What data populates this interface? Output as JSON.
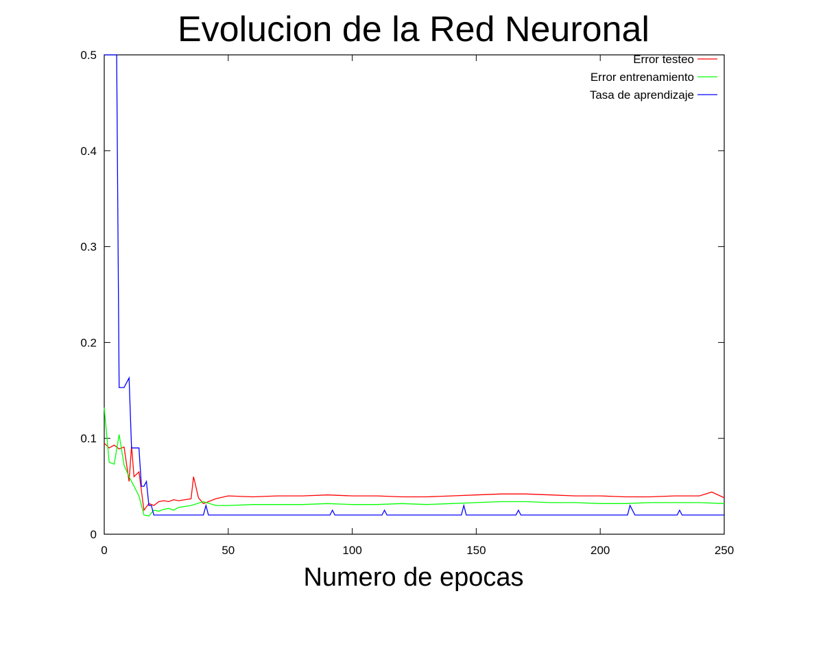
{
  "chart_data": {
    "type": "line",
    "title": "Evolucion de la Red Neuronal",
    "xlabel": "Numero de epocas",
    "ylabel": "",
    "xlim": [
      0,
      250
    ],
    "ylim": [
      0,
      0.5
    ],
    "x_ticks": [
      0,
      50,
      100,
      150,
      200,
      250
    ],
    "y_ticks": [
      0,
      0.1,
      0.2,
      0.3,
      0.4,
      0.5
    ],
    "x_tick_labels": [
      "0",
      "50",
      "100",
      "150",
      "200",
      "250"
    ],
    "y_tick_labels": [
      "0",
      "0.1",
      "0.2",
      "0.3",
      "0.4",
      "0.5"
    ],
    "grid": false,
    "legend_position": "top-right",
    "series": [
      {
        "name": "Error testeo",
        "color": "#ff0000",
        "x": [
          0,
          2,
          4,
          6,
          8,
          10,
          11,
          12,
          14,
          16,
          18,
          20,
          22,
          24,
          26,
          28,
          30,
          35,
          36,
          38,
          40,
          45,
          50,
          60,
          70,
          80,
          90,
          100,
          110,
          120,
          130,
          140,
          150,
          160,
          170,
          180,
          190,
          200,
          210,
          220,
          230,
          240,
          245,
          250
        ],
        "y": [
          0.095,
          0.09,
          0.093,
          0.089,
          0.091,
          0.055,
          0.092,
          0.06,
          0.065,
          0.025,
          0.032,
          0.03,
          0.034,
          0.035,
          0.034,
          0.036,
          0.035,
          0.037,
          0.06,
          0.038,
          0.032,
          0.037,
          0.04,
          0.039,
          0.04,
          0.04,
          0.041,
          0.04,
          0.04,
          0.039,
          0.039,
          0.04,
          0.041,
          0.042,
          0.042,
          0.041,
          0.04,
          0.04,
          0.039,
          0.039,
          0.04,
          0.04,
          0.044,
          0.038
        ]
      },
      {
        "name": "Error entrenamiento",
        "color": "#00ff00",
        "x": [
          0,
          2,
          4,
          6,
          8,
          10,
          12,
          14,
          16,
          18,
          20,
          22,
          24,
          26,
          28,
          30,
          35,
          40,
          45,
          50,
          60,
          70,
          80,
          90,
          100,
          110,
          120,
          130,
          140,
          150,
          160,
          170,
          180,
          190,
          200,
          210,
          220,
          230,
          240,
          250
        ],
        "y": [
          0.132,
          0.075,
          0.073,
          0.104,
          0.072,
          0.06,
          0.05,
          0.04,
          0.02,
          0.019,
          0.025,
          0.024,
          0.026,
          0.027,
          0.025,
          0.028,
          0.03,
          0.034,
          0.03,
          0.03,
          0.031,
          0.031,
          0.031,
          0.032,
          0.031,
          0.031,
          0.032,
          0.031,
          0.032,
          0.033,
          0.034,
          0.034,
          0.033,
          0.033,
          0.032,
          0.032,
          0.033,
          0.033,
          0.033,
          0.032
        ]
      },
      {
        "name": "Tasa de aprendizaje",
        "color": "#0000ff",
        "x": [
          0,
          3,
          5,
          6,
          7,
          8,
          10,
          11,
          12,
          14,
          15,
          16,
          17,
          18,
          19,
          20,
          40,
          41,
          42,
          91,
          92,
          93,
          112,
          113,
          114,
          144,
          145,
          146,
          166,
          167,
          168,
          211,
          212,
          214,
          231,
          232,
          233,
          250
        ],
        "y": [
          0.5,
          0.5,
          0.5,
          0.153,
          0.153,
          0.153,
          0.163,
          0.09,
          0.09,
          0.09,
          0.05,
          0.05,
          0.055,
          0.03,
          0.03,
          0.02,
          0.02,
          0.03,
          0.02,
          0.02,
          0.025,
          0.02,
          0.02,
          0.025,
          0.02,
          0.02,
          0.03,
          0.02,
          0.02,
          0.025,
          0.02,
          0.02,
          0.03,
          0.02,
          0.02,
          0.025,
          0.02,
          0.02
        ]
      }
    ]
  }
}
